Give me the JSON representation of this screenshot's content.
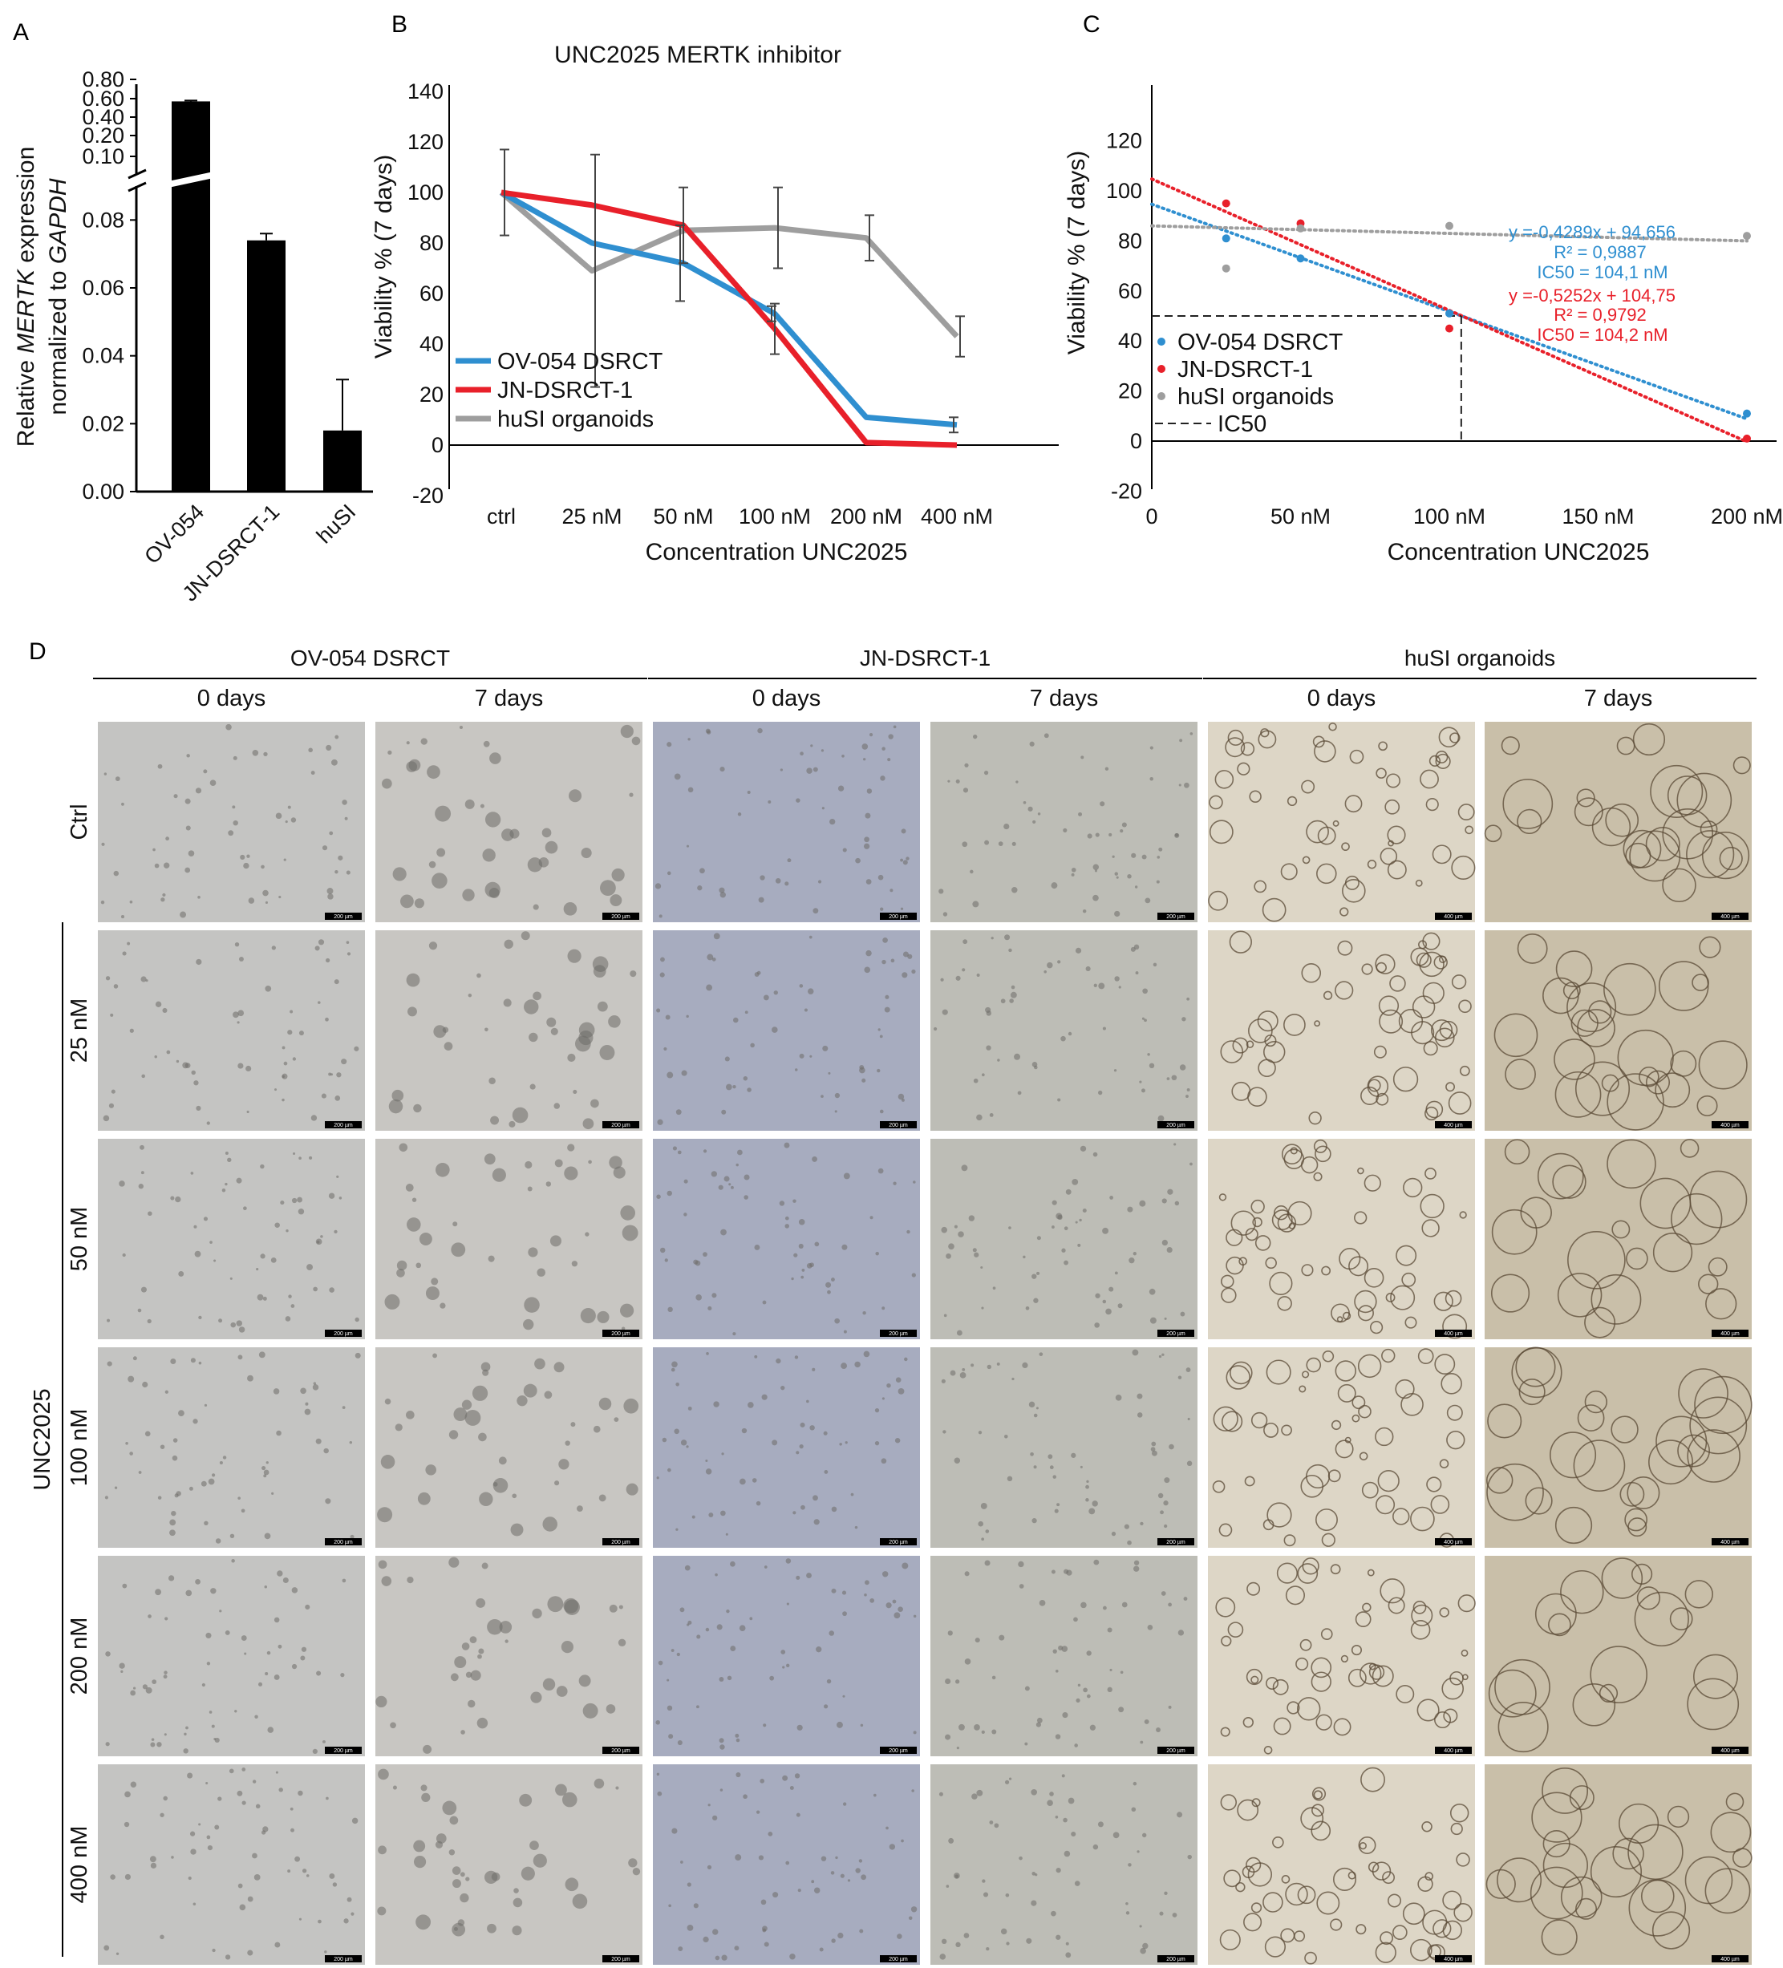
{
  "panels": {
    "a": {
      "letter": "A"
    },
    "b": {
      "letter": "B"
    },
    "c": {
      "letter": "C"
    },
    "d": {
      "letter": "D"
    }
  },
  "chart_data": [
    {
      "id": "A",
      "type": "bar",
      "title": "",
      "ylabel_line1_pre": "Relative ",
      "ylabel_line1_gene": "MERTK",
      "ylabel_line1_post": " expression",
      "ylabel_line2_pre": "normalized to ",
      "ylabel_line2_gene": "GAPDH",
      "categories": [
        "OV-054",
        "JN-DSRCT-1",
        "huSI"
      ],
      "values": [
        0.6,
        0.074,
        0.018
      ],
      "errors": [
        0.008,
        0.002,
        0.015
      ],
      "bar_color": "#000000",
      "axis_break": true,
      "lower_ylim": [
        0,
        0.09
      ],
      "lower_ticks": [
        "0.00",
        "0.02",
        "0.04",
        "0.06",
        "0.08"
      ],
      "upper_ticks": [
        "0.10",
        "0.20",
        "0.40",
        "0.60",
        "0.80"
      ]
    },
    {
      "id": "B",
      "type": "line",
      "title": "UNC2025 MERTK inhibitor",
      "xlabel": "Concentration UNC2025",
      "ylabel": "Viability % (7 days)",
      "categories": [
        "ctrl",
        "25 nM",
        "50 nM",
        "100 nM",
        "200 nM",
        "400 nM"
      ],
      "ylim": [
        -20,
        140
      ],
      "yticks": [
        -20,
        0,
        20,
        40,
        60,
        80,
        100,
        120,
        140
      ],
      "legend_position": "bottom-left",
      "series": [
        {
          "name": "OV-054 DSRCT",
          "color": "#2f8fd0",
          "values": [
            100,
            80,
            72,
            52,
            11,
            8
          ],
          "errors": [
            0,
            0,
            15,
            3,
            0,
            3
          ]
        },
        {
          "name": "JN-DSRCT-1",
          "color": "#e8202a",
          "values": [
            100,
            95,
            87,
            46,
            1,
            0
          ],
          "errors": [
            0,
            0,
            15,
            10,
            0,
            0
          ]
        },
        {
          "name": "huSI organoids",
          "color": "#9e9e9e",
          "values": [
            100,
            69,
            85,
            86,
            82,
            43
          ],
          "errors": [
            17,
            46,
            0,
            16,
            9,
            8
          ]
        }
      ]
    },
    {
      "id": "C",
      "type": "scatter",
      "xlabel": "Concentration UNC2025",
      "ylabel": "Viability % (7 days)",
      "xlim": [
        0,
        240
      ],
      "ylim": [
        -20,
        120
      ],
      "xticks": [
        0,
        50,
        100,
        150,
        200
      ],
      "xtick_labels": [
        "0",
        "50 nM",
        "100 nM",
        "150 nM",
        "200 nM"
      ],
      "yticks": [
        -20,
        0,
        20,
        40,
        60,
        80,
        100,
        120
      ],
      "legend_position": "bottom-left",
      "series": [
        {
          "name": "OV-054 DSRCT",
          "color": "#2f8fd0",
          "x": [
            25,
            50,
            100,
            200
          ],
          "y": [
            81,
            73,
            51,
            11
          ],
          "fit": {
            "slope": -0.4289,
            "intercept": 94.656
          }
        },
        {
          "name": "JN-DSRCT-1",
          "color": "#e8202a",
          "x": [
            25,
            50,
            100,
            200
          ],
          "y": [
            95,
            87,
            45,
            1
          ],
          "fit": {
            "slope": -0.5252,
            "intercept": 104.75
          }
        },
        {
          "name": "huSI organoids",
          "color": "#9e9e9e",
          "x": [
            25,
            50,
            100,
            200
          ],
          "y": [
            69,
            85,
            86,
            82
          ],
          "fit": {
            "slope": -0.03,
            "intercept": 86
          }
        }
      ],
      "ic50": {
        "label": "IC50",
        "x": 104,
        "y": 50
      },
      "equations": [
        {
          "series": "OV-054 DSRCT",
          "color": "#2f8fd0",
          "eq": "y =-0,4289x + 94,656",
          "r2": "R² = 0,9887",
          "ic50": "IC50 = 104,1 nM"
        },
        {
          "series": "JN-DSRCT-1",
          "color": "#e8202a",
          "eq": "y =-0,5252x + 104,75",
          "r2": "R² = 0,9792",
          "ic50": "IC50 = 104,2 nM"
        }
      ]
    }
  ],
  "image_grid": {
    "groups": [
      {
        "title": "OV-054 DSRCT",
        "tint0": "#c4c4c2",
        "tint7": "#c8c6c2"
      },
      {
        "title": "JN-DSRCT-1",
        "tint0": "#a7acbf",
        "tint7": "#bdbdb6"
      },
      {
        "title": "huSI organoids",
        "tint0": "#ddd6c6",
        "tint7": "#c9bfa9"
      }
    ],
    "timepoints": [
      "0 days",
      "7 days"
    ],
    "rows": [
      "Ctrl",
      "25 nM",
      "50 nM",
      "100 nM",
      "200 nM",
      "400 nM"
    ],
    "side_label": "UNC2025",
    "scale_bars": [
      "200 µm",
      "200 µm",
      "200 µm",
      "200 µm",
      "400 µm",
      "400 µm"
    ]
  }
}
